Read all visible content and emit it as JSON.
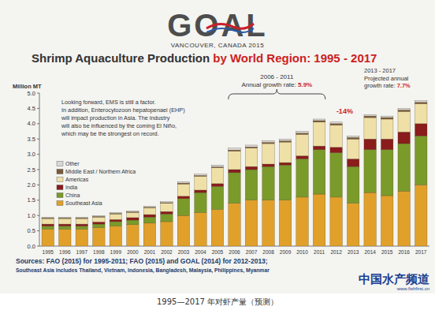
{
  "header": {
    "logo": "GOAL",
    "event": "VANCOUVER, CANADA 2015"
  },
  "chart_data": {
    "type": "bar",
    "title": "Shrimp Aquaculture Production by World Region: 1995 - 2017",
    "y_label": "Million MT",
    "categories": [
      "1995",
      "1996",
      "1997",
      "1998",
      "1999",
      "2000",
      "2001",
      "2002",
      "2003",
      "2004",
      "2005",
      "2006",
      "2007",
      "2008",
      "2009",
      "2010",
      "2011",
      "2012",
      "2013",
      "2014",
      "2015",
      "2016",
      "2017"
    ],
    "series": [
      {
        "name": "Southeast Asia",
        "color": "#e0a02a",
        "values": [
          0.55,
          0.55,
          0.55,
          0.6,
          0.65,
          0.7,
          0.75,
          0.8,
          1.0,
          1.1,
          1.2,
          1.4,
          1.5,
          1.5,
          1.5,
          1.6,
          1.7,
          1.6,
          1.4,
          1.75,
          1.65,
          1.8,
          2.0
        ]
      },
      {
        "name": "China",
        "color": "#7a9a2a",
        "values": [
          0.1,
          0.1,
          0.1,
          0.12,
          0.15,
          0.15,
          0.2,
          0.25,
          0.55,
          0.65,
          0.75,
          1.0,
          1.0,
          1.1,
          1.15,
          1.25,
          1.45,
          1.45,
          1.2,
          1.4,
          1.5,
          1.55,
          1.6
        ]
      },
      {
        "name": "India",
        "color": "#8a1c1c",
        "values": [
          0.07,
          0.07,
          0.07,
          0.07,
          0.07,
          0.08,
          0.08,
          0.08,
          0.08,
          0.08,
          0.09,
          0.1,
          0.1,
          0.08,
          0.08,
          0.1,
          0.12,
          0.18,
          0.25,
          0.35,
          0.35,
          0.38,
          0.4
        ]
      },
      {
        "name": "Americas",
        "color": "#efe0a8",
        "values": [
          0.18,
          0.18,
          0.18,
          0.16,
          0.18,
          0.17,
          0.22,
          0.27,
          0.4,
          0.45,
          0.52,
          0.6,
          0.6,
          0.67,
          0.67,
          0.7,
          0.78,
          0.72,
          0.65,
          0.7,
          0.65,
          0.67,
          0.65
        ]
      },
      {
        "name": "Middle East / Northern Africa",
        "color": "#7a5a3a",
        "values": [
          0.02,
          0.02,
          0.02,
          0.02,
          0.02,
          0.02,
          0.02,
          0.02,
          0.03,
          0.03,
          0.03,
          0.04,
          0.04,
          0.04,
          0.04,
          0.04,
          0.05,
          0.05,
          0.05,
          0.05,
          0.05,
          0.05,
          0.05
        ]
      },
      {
        "name": "Other",
        "color": "#d8d8d8",
        "values": [
          0.03,
          0.03,
          0.03,
          0.03,
          0.03,
          0.03,
          0.03,
          0.03,
          0.04,
          0.04,
          0.06,
          0.06,
          0.06,
          0.06,
          0.06,
          0.06,
          0.05,
          0.05,
          0.05,
          0.05,
          0.05,
          0.05,
          0.05
        ]
      }
    ],
    "ylim": [
      0,
      5
    ],
    "yticks": [
      {
        "value": 0,
        "label": "0.0"
      },
      0.5,
      {
        "value": 1,
        "label": "1.0"
      },
      1.5,
      {
        "value": 2,
        "label": "2.0"
      },
      2.5,
      {
        "value": 3,
        "label": "3.0"
      },
      3.5,
      {
        "value": 4,
        "label": "4.0"
      },
      4.5,
      {
        "value": 5,
        "label": "5.0"
      }
    ],
    "stacked": true,
    "legend": "upper left",
    "grid": false,
    "annotations": [
      {
        "lines": [
          "Looking forward, EMS is still a factor.",
          "In addition, Enterocytozoon hepatopenaei (EHP)",
          "will impact production in Asia. The industry",
          "will also be influenced by the coming El Niño,",
          "which may be the strongest on record."
        ]
      },
      {
        "lines": [
          "2006 - 2011",
          "Annual growth rate: 5.9%"
        ]
      },
      {
        "lines": [
          "-14%"
        ]
      },
      {
        "lines": [
          "2013 - 2017",
          "Projected annual",
          "growth rate: 7.7%"
        ]
      }
    ]
  },
  "sources": [
    "Sources: FAO (2015) for 1995-2011; FAO (2015) and GOAL (2014) for 2012-2013;",
    "Southeast Asia includes Thailand, Vietnam, Indonesia, Bangladesh, Malaysia, Philippines, Myanmar"
  ],
  "watermark": {
    "name": "中国水产频道",
    "url": "www.fishfirst.cn"
  },
  "caption": "1995—2017 年对虾产量（预测）"
}
